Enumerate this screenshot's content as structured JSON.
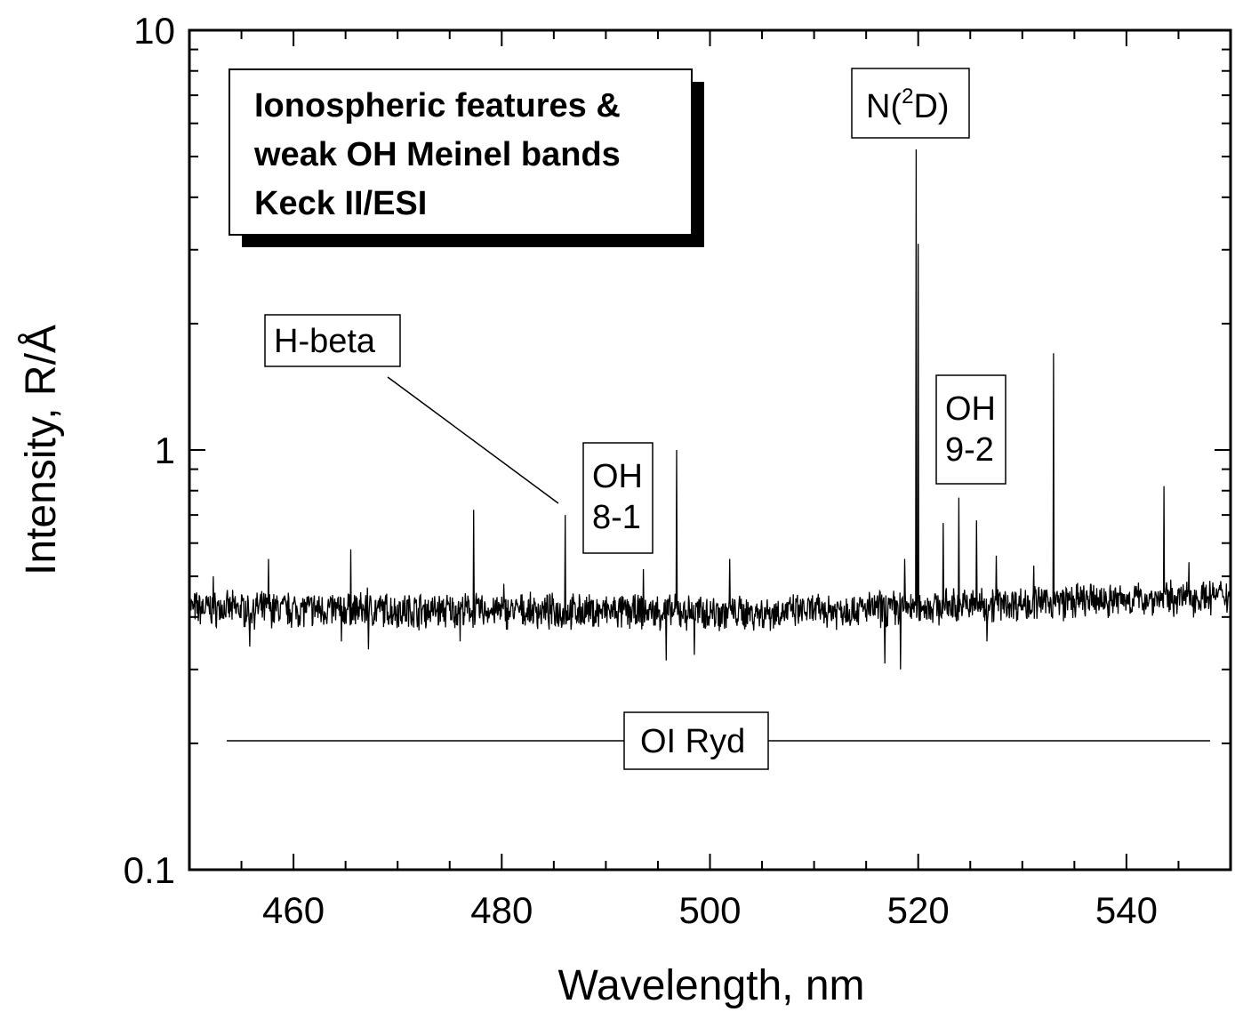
{
  "chart_data": {
    "type": "line",
    "xlabel": "Wavelength, nm",
    "ylabel": "Intensity, R/Å",
    "xlim": [
      450,
      550
    ],
    "ylim": [
      0.1,
      10
    ],
    "yscale": "log",
    "grid": false,
    "legend": "none",
    "x_ticks": [
      460,
      480,
      500,
      520,
      540
    ],
    "y_ticks": [
      0.1,
      1,
      10
    ],
    "x_tick_labels": [
      "460",
      "480",
      "500",
      "520",
      "540"
    ],
    "y_tick_labels": [
      "0.1",
      "1",
      "10"
    ],
    "title_box": {
      "lines": [
        "Ionospheric features &",
        "weak OH Meinel bands",
        "Keck II/ESI"
      ]
    },
    "baseline": {
      "start_x": 450,
      "start_y": 0.42,
      "mid_x": 505,
      "mid_y": 0.41,
      "end_x": 550,
      "end_y": 0.45
    },
    "peaks": [
      {
        "x": 452.3,
        "y": 0.5
      },
      {
        "x": 457.6,
        "y": 0.55
      },
      {
        "x": 465.5,
        "y": 0.58
      },
      {
        "x": 467.1,
        "y": 0.47
      },
      {
        "x": 477.3,
        "y": 0.72
      },
      {
        "x": 480.2,
        "y": 0.48
      },
      {
        "x": 486.1,
        "y": 0.7
      },
      {
        "x": 493.6,
        "y": 0.52
      },
      {
        "x": 496.8,
        "y": 1.0
      },
      {
        "x": 501.9,
        "y": 0.55
      },
      {
        "x": 518.7,
        "y": 0.55
      },
      {
        "x": 519.8,
        "y": 5.2
      },
      {
        "x": 520.0,
        "y": 3.1
      },
      {
        "x": 522.4,
        "y": 0.67
      },
      {
        "x": 523.9,
        "y": 0.77
      },
      {
        "x": 525.6,
        "y": 0.68
      },
      {
        "x": 527.5,
        "y": 0.56
      },
      {
        "x": 531.1,
        "y": 0.53
      },
      {
        "x": 533.0,
        "y": 1.7
      },
      {
        "x": 543.6,
        "y": 0.82
      },
      {
        "x": 546.0,
        "y": 0.54
      }
    ],
    "dips": [
      {
        "x": 455.8,
        "y": 0.34
      },
      {
        "x": 464.6,
        "y": 0.35
      },
      {
        "x": 467.2,
        "y": 0.335
      },
      {
        "x": 476.0,
        "y": 0.35
      },
      {
        "x": 495.8,
        "y": 0.315
      },
      {
        "x": 498.5,
        "y": 0.325
      },
      {
        "x": 516.8,
        "y": 0.31
      },
      {
        "x": 518.3,
        "y": 0.3
      },
      {
        "x": 526.6,
        "y": 0.35
      }
    ],
    "annotations": [
      {
        "label": "N(",
        "sup": "2",
        "label_end": "D)",
        "x": 520.0,
        "y": 6.5
      },
      {
        "label": "H-beta",
        "x": 477.0,
        "y": 2.4,
        "pointer": {
          "from_x": 473.5,
          "from_y": 1.7,
          "to_x": 486.1,
          "to_y": 0.74
        }
      },
      {
        "lines": [
          "OH",
          "8-1"
        ],
        "x": 490.0,
        "y": 0.68
      },
      {
        "lines": [
          "OH",
          "9-2"
        ],
        "x": 525.0,
        "y": 1.25
      },
      {
        "label": "OI Ryd",
        "x": 508.0,
        "y": 0.2,
        "band": [
          453.5,
          548.0
        ]
      }
    ]
  }
}
